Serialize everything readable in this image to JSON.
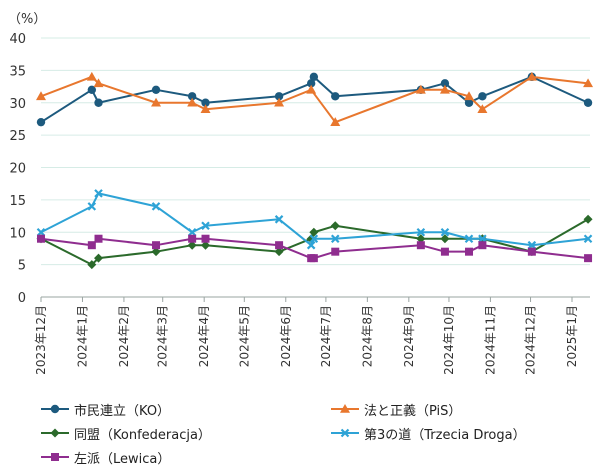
{
  "chart_data": {
    "type": "line",
    "y_unit_label": "（%）",
    "ylim": [
      0,
      40
    ],
    "y_ticks": [
      "0",
      "5",
      "10",
      "15",
      "20",
      "25",
      "30",
      "35",
      "40"
    ],
    "grid": "horizontal",
    "legend_placement": "bottom",
    "x_ticks": [
      {
        "date": "2023-12-01",
        "label": "2023年12月"
      },
      {
        "date": "2024-01-01",
        "label": "2024年1月"
      },
      {
        "date": "2024-02-01",
        "label": "2024年2月"
      },
      {
        "date": "2024-03-01",
        "label": "2024年3月"
      },
      {
        "date": "2024-04-01",
        "label": "2024年4月"
      },
      {
        "date": "2024-05-01",
        "label": "2024年5月"
      },
      {
        "date": "2024-06-01",
        "label": "2024年6月"
      },
      {
        "date": "2024-07-01",
        "label": "2024年7月"
      },
      {
        "date": "2024-08-01",
        "label": "2024年8月"
      },
      {
        "date": "2024-09-01",
        "label": "2024年9月"
      },
      {
        "date": "2024-10-01",
        "label": "2024年10月"
      },
      {
        "date": "2024-11-01",
        "label": "2024年11月"
      },
      {
        "date": "2024-12-01",
        "label": "2024年12月"
      },
      {
        "date": "2025-01-01",
        "label": "2025年1月"
      }
    ],
    "series": [
      {
        "name": "市民連立（KO）",
        "color": "#1d5a7e",
        "marker": "circle",
        "points": [
          [
            "2023-12-01",
            27
          ],
          [
            "2024-01-08",
            32
          ],
          [
            "2024-01-13",
            30
          ],
          [
            "2024-02-25",
            32
          ],
          [
            "2024-03-23",
            31
          ],
          [
            "2024-04-02",
            30
          ],
          [
            "2024-05-27",
            31
          ],
          [
            "2024-06-20",
            33
          ],
          [
            "2024-06-22",
            34
          ],
          [
            "2024-07-08",
            31
          ],
          [
            "2024-09-10",
            32
          ],
          [
            "2024-09-28",
            33
          ],
          [
            "2024-10-16",
            30
          ],
          [
            "2024-10-26",
            31
          ],
          [
            "2024-12-02",
            34
          ],
          [
            "2025-01-13",
            30
          ]
        ]
      },
      {
        "name": "法と正義（PiS）",
        "color": "#e8772e",
        "marker": "triangle",
        "points": [
          [
            "2023-12-01",
            31
          ],
          [
            "2024-01-08",
            34
          ],
          [
            "2024-01-13",
            33
          ],
          [
            "2024-02-25",
            30
          ],
          [
            "2024-03-23",
            30
          ],
          [
            "2024-04-02",
            29
          ],
          [
            "2024-05-27",
            30
          ],
          [
            "2024-06-20",
            32
          ],
          [
            "2024-07-08",
            27
          ],
          [
            "2024-09-10",
            32
          ],
          [
            "2024-09-28",
            32
          ],
          [
            "2024-10-16",
            31
          ],
          [
            "2024-10-26",
            29
          ],
          [
            "2024-12-02",
            34
          ],
          [
            "2025-01-13",
            33
          ]
        ]
      },
      {
        "name": "同盟（Konfederacja）",
        "color": "#2b6a2b",
        "marker": "diamond",
        "points": [
          [
            "2023-12-01",
            9
          ],
          [
            "2024-01-08",
            5
          ],
          [
            "2024-01-13",
            6
          ],
          [
            "2024-02-25",
            7
          ],
          [
            "2024-03-23",
            8
          ],
          [
            "2024-04-02",
            8
          ],
          [
            "2024-05-27",
            7
          ],
          [
            "2024-06-20",
            9
          ],
          [
            "2024-06-22",
            10
          ],
          [
            "2024-07-08",
            11
          ],
          [
            "2024-09-10",
            9
          ],
          [
            "2024-09-28",
            9
          ],
          [
            "2024-10-26",
            9
          ],
          [
            "2024-12-02",
            7
          ],
          [
            "2025-01-13",
            12
          ]
        ]
      },
      {
        "name": "第3の道（Trzecia Droga）",
        "color": "#2ea3d6",
        "marker": "x",
        "points": [
          [
            "2023-12-01",
            10
          ],
          [
            "2024-01-08",
            14
          ],
          [
            "2024-01-13",
            16
          ],
          [
            "2024-02-25",
            14
          ],
          [
            "2024-03-23",
            10
          ],
          [
            "2024-04-02",
            11
          ],
          [
            "2024-05-27",
            12
          ],
          [
            "2024-06-20",
            8
          ],
          [
            "2024-06-22",
            9
          ],
          [
            "2024-07-08",
            9
          ],
          [
            "2024-09-10",
            10
          ],
          [
            "2024-09-28",
            10
          ],
          [
            "2024-10-16",
            9
          ],
          [
            "2024-10-26",
            9
          ],
          [
            "2024-12-02",
            8
          ],
          [
            "2025-01-13",
            9
          ]
        ]
      },
      {
        "name": "左派（Lewica）",
        "color": "#8f2d8f",
        "marker": "square",
        "points": [
          [
            "2023-12-01",
            9
          ],
          [
            "2024-01-08",
            8
          ],
          [
            "2024-01-13",
            9
          ],
          [
            "2024-02-25",
            8
          ],
          [
            "2024-03-23",
            9
          ],
          [
            "2024-04-02",
            9
          ],
          [
            "2024-05-27",
            8
          ],
          [
            "2024-06-20",
            6
          ],
          [
            "2024-06-22",
            6
          ],
          [
            "2024-07-08",
            7
          ],
          [
            "2024-09-10",
            8
          ],
          [
            "2024-09-28",
            7
          ],
          [
            "2024-10-16",
            7
          ],
          [
            "2024-10-26",
            8
          ],
          [
            "2024-12-02",
            7
          ],
          [
            "2025-01-13",
            6
          ]
        ]
      }
    ]
  }
}
